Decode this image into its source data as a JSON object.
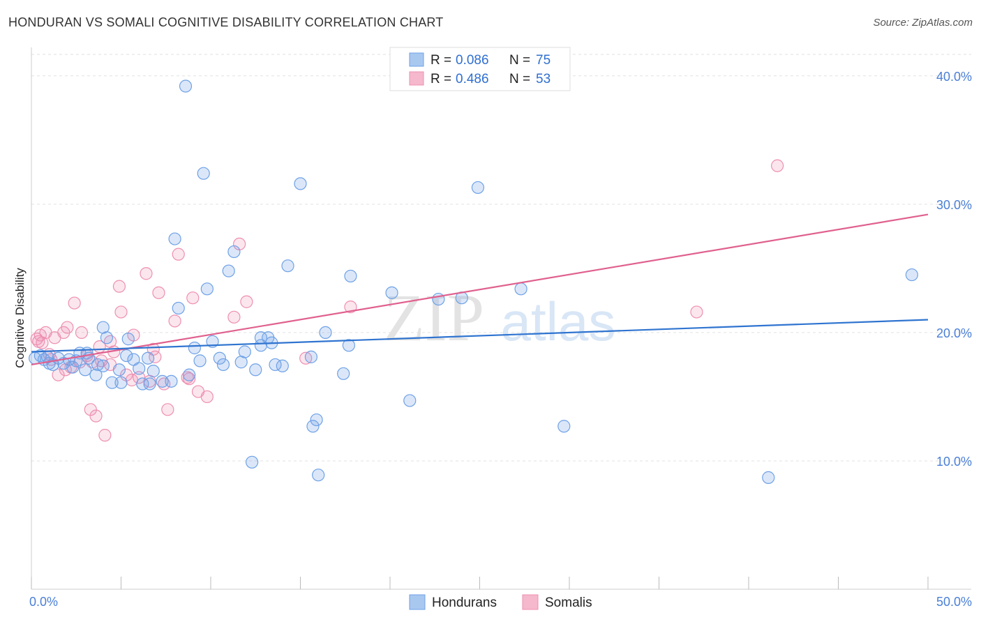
{
  "header": {
    "title": "HONDURAN VS SOMALI COGNITIVE DISABILITY CORRELATION CHART",
    "source": "Source: ZipAtlas.com"
  },
  "watermark": {
    "zip": "ZIP",
    "atlas": "atlas"
  },
  "legend_top": {
    "rows": [
      {
        "r_label": "R =",
        "r_value": "0.086",
        "n_label": "N =",
        "n_value": "75",
        "color": "#a9c8f0"
      },
      {
        "r_label": "R =",
        "r_value": "0.486",
        "n_label": "N =",
        "n_value": "53",
        "color": "#f5b8cc"
      }
    ]
  },
  "legend_bottom": {
    "items": [
      {
        "label": "Hondurans",
        "color": "#a9c8f0"
      },
      {
        "label": "Somalis",
        "color": "#f5b8cc"
      }
    ]
  },
  "chart_data": {
    "type": "scatter",
    "title": "HONDURAN VS SOMALI COGNITIVE DISABILITY CORRELATION CHART",
    "xlabel": "",
    "ylabel": "Cognitive Disability",
    "xlim": [
      0,
      50
    ],
    "ylim": [
      0,
      42
    ],
    "x_tick_labels": [
      "0.0%",
      "50.0%"
    ],
    "y_ticks": [
      10,
      20,
      30,
      40
    ],
    "y_tick_labels": [
      "10.0%",
      "20.0%",
      "30.0%",
      "40.0%"
    ],
    "grid": true,
    "legend": "top-center",
    "colors": {
      "hondurans": "#6ea1e6",
      "hondurans_line": "#2f74d0",
      "somalis": "#ee8fb0",
      "somalis_line": "#e0608e"
    },
    "series": [
      {
        "name": "Hondurans",
        "r": 0.086,
        "n": 75,
        "trend": {
          "x": [
            0,
            50
          ],
          "y": [
            18.5,
            21.0
          ]
        },
        "points": [
          [
            0.2,
            18.0
          ],
          [
            0.5,
            18.2
          ],
          [
            0.7,
            17.9
          ],
          [
            0.9,
            18.1
          ],
          [
            1.2,
            17.5
          ],
          [
            1.5,
            18.0
          ],
          [
            1.8,
            17.6
          ],
          [
            2.1,
            17.9
          ],
          [
            2.3,
            17.3
          ],
          [
            2.5,
            17.8
          ],
          [
            2.7,
            18.4
          ],
          [
            3.0,
            17.1
          ],
          [
            3.2,
            18.0
          ],
          [
            3.6,
            16.7
          ],
          [
            4.0,
            17.4
          ],
          [
            4.2,
            19.6
          ],
          [
            4.5,
            16.1
          ],
          [
            4.9,
            17.1
          ],
          [
            5.3,
            18.2
          ],
          [
            5.7,
            17.9
          ],
          [
            6.0,
            17.2
          ],
          [
            6.5,
            18.0
          ],
          [
            6.8,
            17.0
          ],
          [
            7.3,
            16.2
          ],
          [
            8.0,
            27.3
          ],
          [
            8.2,
            21.9
          ],
          [
            8.6,
            39.2
          ],
          [
            9.1,
            18.8
          ],
          [
            9.6,
            32.4
          ],
          [
            9.8,
            23.4
          ],
          [
            10.7,
            17.5
          ],
          [
            11.0,
            24.8
          ],
          [
            11.3,
            26.3
          ],
          [
            11.7,
            17.7
          ],
          [
            12.5,
            17.1
          ],
          [
            12.8,
            19.6
          ],
          [
            13.2,
            19.6
          ],
          [
            13.6,
            17.5
          ],
          [
            14.3,
            25.2
          ],
          [
            15.0,
            31.6
          ],
          [
            15.7,
            12.7
          ],
          [
            15.9,
            13.2
          ],
          [
            16.0,
            8.9
          ],
          [
            16.4,
            20.0
          ],
          [
            17.4,
            16.8
          ],
          [
            17.8,
            24.4
          ],
          [
            20.1,
            23.1
          ],
          [
            21.1,
            14.7
          ],
          [
            24.0,
            22.7
          ],
          [
            24.9,
            31.3
          ],
          [
            27.3,
            23.4
          ],
          [
            29.7,
            12.7
          ],
          [
            41.1,
            8.7
          ],
          [
            49.1,
            24.5
          ],
          [
            3.1,
            18.4
          ],
          [
            5.4,
            19.5
          ],
          [
            4.0,
            20.4
          ],
          [
            6.6,
            16.0
          ],
          [
            9.4,
            17.8
          ],
          [
            10.5,
            18.0
          ],
          [
            12.3,
            9.9
          ],
          [
            7.8,
            16.2
          ],
          [
            8.8,
            16.7
          ],
          [
            15.6,
            18.1
          ],
          [
            17.7,
            19.0
          ],
          [
            22.7,
            22.6
          ],
          [
            14.0,
            17.4
          ],
          [
            5.0,
            16.1
          ],
          [
            3.7,
            17.5
          ],
          [
            6.2,
            16.0
          ],
          [
            10.1,
            19.3
          ],
          [
            12.8,
            19.0
          ],
          [
            11.9,
            18.5
          ],
          [
            13.4,
            19.2
          ],
          [
            1.0,
            17.6
          ]
        ]
      },
      {
        "name": "Somalis",
        "r": 0.486,
        "n": 53,
        "trend": {
          "x": [
            0,
            50
          ],
          "y": [
            17.5,
            29.2
          ]
        },
        "points": [
          [
            0.3,
            19.5
          ],
          [
            0.6,
            19.2
          ],
          [
            0.8,
            20.0
          ],
          [
            1.0,
            18.3
          ],
          [
            1.3,
            19.6
          ],
          [
            1.5,
            16.7
          ],
          [
            1.8,
            20.0
          ],
          [
            2.0,
            20.4
          ],
          [
            2.2,
            17.3
          ],
          [
            2.4,
            22.3
          ],
          [
            2.8,
            20.0
          ],
          [
            3.1,
            18.2
          ],
          [
            3.3,
            14.0
          ],
          [
            3.6,
            13.5
          ],
          [
            3.9,
            17.8
          ],
          [
            4.1,
            12.0
          ],
          [
            4.4,
            17.5
          ],
          [
            4.9,
            23.6
          ],
          [
            5.0,
            21.6
          ],
          [
            5.3,
            16.7
          ],
          [
            5.7,
            19.8
          ],
          [
            6.0,
            16.5
          ],
          [
            6.4,
            24.6
          ],
          [
            6.9,
            18.1
          ],
          [
            7.1,
            23.1
          ],
          [
            7.6,
            14.0
          ],
          [
            8.0,
            20.9
          ],
          [
            8.2,
            26.1
          ],
          [
            8.7,
            16.5
          ],
          [
            9.0,
            22.7
          ],
          [
            9.3,
            15.4
          ],
          [
            9.8,
            15.0
          ],
          [
            11.3,
            21.2
          ],
          [
            11.6,
            26.9
          ],
          [
            12.0,
            22.4
          ],
          [
            17.8,
            22.0
          ],
          [
            15.3,
            18.0
          ],
          [
            37.1,
            21.6
          ],
          [
            41.6,
            33.0
          ],
          [
            3.8,
            18.9
          ],
          [
            2.7,
            17.7
          ],
          [
            1.1,
            17.9
          ],
          [
            0.5,
            19.8
          ],
          [
            4.6,
            18.5
          ],
          [
            6.6,
            16.2
          ],
          [
            7.4,
            16.0
          ],
          [
            8.8,
            16.4
          ],
          [
            5.6,
            16.3
          ],
          [
            1.9,
            17.1
          ],
          [
            0.4,
            19.3
          ],
          [
            3.4,
            17.7
          ],
          [
            6.8,
            18.7
          ],
          [
            4.4,
            19.3
          ]
        ]
      }
    ]
  }
}
